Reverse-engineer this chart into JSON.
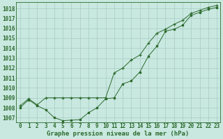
{
  "series1_x": [
    0,
    1,
    2,
    3,
    4,
    5,
    6,
    7,
    8,
    9,
    10,
    11,
    12,
    13,
    14,
    15,
    16,
    17,
    18,
    19,
    20,
    21,
    22,
    23
  ],
  "series1_y": [
    1008.0,
    1008.8,
    1008.2,
    1007.8,
    1007.0,
    1006.7,
    1006.75,
    1006.8,
    1007.5,
    1008.0,
    1008.9,
    1009.0,
    1010.4,
    1010.7,
    1011.6,
    1013.2,
    1014.2,
    1015.7,
    1015.9,
    1016.3,
    1017.3,
    1017.6,
    1017.9,
    1018.1
  ],
  "series2_x": [
    0,
    1,
    2,
    3,
    4,
    5,
    6,
    7,
    8,
    9,
    10,
    11,
    12,
    13,
    14,
    15,
    16,
    17,
    18,
    19,
    20,
    21,
    22,
    23
  ],
  "series2_y": [
    1008.2,
    1008.9,
    1008.3,
    1009.0,
    1009.0,
    1009.0,
    1009.0,
    1009.0,
    1009.0,
    1009.0,
    1009.0,
    1011.5,
    1012.0,
    1012.8,
    1013.3,
    1014.5,
    1015.5,
    1015.9,
    1016.4,
    1016.8,
    1017.5,
    1017.8,
    1018.1,
    1018.3
  ],
  "line_color": "#2d6a2d",
  "bg_color": "#c8e8e0",
  "grid_color": "#a8ccc4",
  "xlabel": "Graphe pression niveau de la mer (hPa)",
  "xlim": [
    -0.5,
    23.4
  ],
  "ylim": [
    1006.5,
    1018.6
  ],
  "yticks": [
    1007,
    1008,
    1009,
    1010,
    1011,
    1012,
    1013,
    1014,
    1015,
    1016,
    1017,
    1018
  ],
  "xticks": [
    0,
    1,
    2,
    3,
    4,
    5,
    6,
    7,
    8,
    9,
    10,
    11,
    12,
    13,
    14,
    15,
    16,
    17,
    18,
    19,
    20,
    21,
    22,
    23
  ],
  "title_fontsize": 6.5,
  "tick_fontsize": 5.5
}
